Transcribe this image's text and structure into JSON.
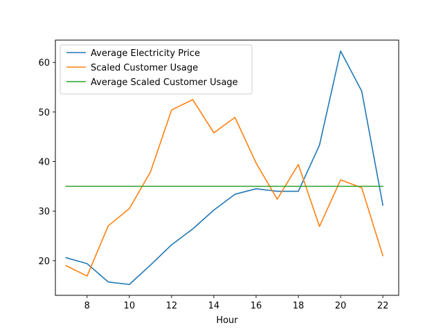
{
  "chart_data": {
    "type": "line",
    "title": "",
    "xlabel": "Hour",
    "ylabel": "",
    "xlim": [
      6.5,
      22.75
    ],
    "ylim": [
      13.0,
      64.5
    ],
    "xticks": [
      8,
      10,
      12,
      14,
      16,
      18,
      20,
      22
    ],
    "yticks": [
      20,
      30,
      40,
      50,
      60
    ],
    "grid": false,
    "legend_position": "upper left",
    "x": [
      7,
      8,
      9,
      10,
      11,
      12,
      13,
      14,
      15,
      16,
      17,
      18,
      19,
      20,
      21,
      22
    ],
    "series": [
      {
        "name": "Average Electricity Price",
        "color": "#1f77b4",
        "values": [
          20.6,
          19.4,
          15.7,
          15.2,
          19.1,
          23.2,
          26.4,
          30.2,
          33.4,
          34.5,
          34.0,
          34.0,
          43.3,
          62.3,
          54.2,
          31.2
        ]
      },
      {
        "name": "Scaled Customer Usage",
        "color": "#ff7f0e",
        "values": [
          19.0,
          16.9,
          27.0,
          30.5,
          37.9,
          50.4,
          52.5,
          45.8,
          48.9,
          39.7,
          32.4,
          39.4,
          26.9,
          36.3,
          34.7,
          21.0
        ]
      },
      {
        "name": "Average Scaled Customer Usage",
        "color": "#2ca02c",
        "values": [
          35.0,
          35.0,
          35.0,
          35.0,
          35.0,
          35.0,
          35.0,
          35.0,
          35.0,
          35.0,
          35.0,
          35.0,
          35.0,
          35.0,
          35.0,
          35.0
        ]
      }
    ]
  }
}
